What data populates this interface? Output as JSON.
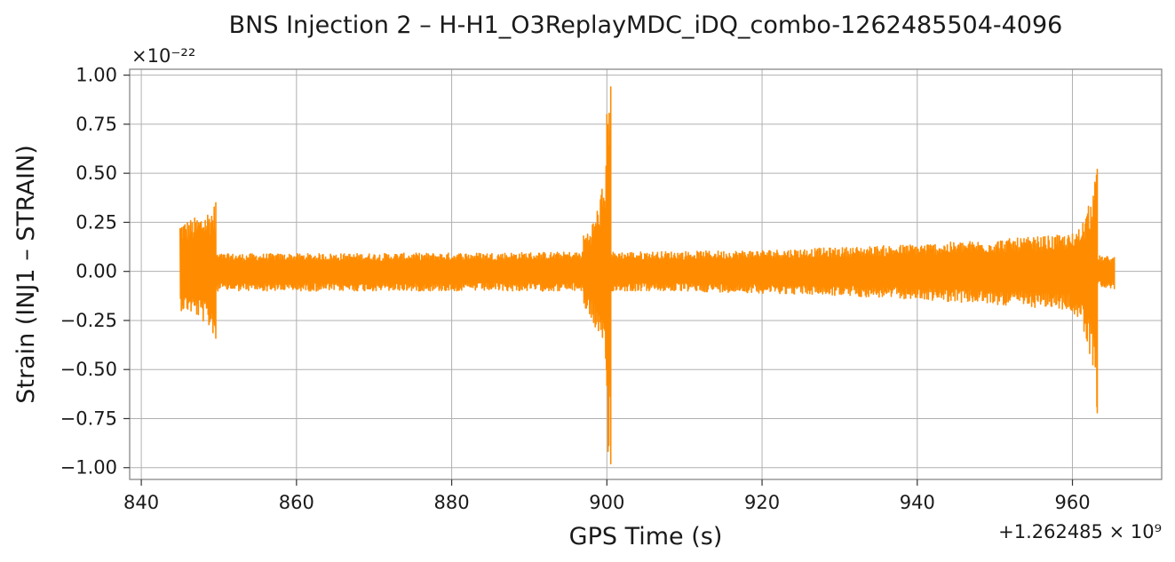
{
  "chart_data": {
    "type": "line",
    "title": "BNS Injection 2 – H-H1_O3ReplayMDC_iDQ_combo-1262485504-4096",
    "xlabel": "GPS Time (s)",
    "ylabel": "Strain (INJ1 – STRAIN)",
    "y_scale_label": "×10⁻²²",
    "x_offset_label": "+1.262485 × 10⁹",
    "xlim": [
      838.5,
      971.5
    ],
    "ylim": [
      -1.06,
      1.03
    ],
    "x_ticks": [
      840,
      860,
      880,
      900,
      920,
      940,
      960
    ],
    "y_ticks": [
      1.0,
      0.75,
      0.5,
      0.25,
      0.0,
      -0.25,
      -0.5,
      -0.75,
      -1.0
    ],
    "x_tick_labels": [
      "840",
      "860",
      "880",
      "900",
      "920",
      "940",
      "960"
    ],
    "y_tick_labels": [
      "1.00",
      "0.75",
      "0.50",
      "0.25",
      "0.00",
      "−0.25",
      "−0.50",
      "−0.75",
      "−1.00"
    ],
    "grid": true,
    "series": [
      {
        "color": "#ff8c00",
        "segments": [
          {
            "x": [
              845.0,
              849.6
            ],
            "ymax": [
              0.26,
              0.35
            ],
            "ymin": [
              -0.2,
              -0.34
            ]
          },
          {
            "x": [
              849.6,
              897.0
            ],
            "ymax": [
              0.09,
              0.1
            ],
            "ymin": [
              -0.1,
              -0.1
            ]
          },
          {
            "x": [
              897.0,
              900.0
            ],
            "ymax": [
              0.2,
              0.57
            ],
            "ymin": [
              -0.2,
              -0.58
            ]
          },
          {
            "x": [
              900.0,
              900.5
            ],
            "ymax": [
              0.94,
              0.94
            ],
            "ymin": [
              -0.98,
              -0.98
            ]
          },
          {
            "x": [
              900.5,
              960.0
            ],
            "ymax": [
              0.1,
              0.19
            ],
            "ymin": [
              -0.1,
              -0.2
            ]
          },
          {
            "x": [
              960.0,
              963.2
            ],
            "ymax": [
              0.2,
              0.52
            ],
            "ymin": [
              -0.22,
              -0.72
            ]
          },
          {
            "x": [
              963.2,
              965.4
            ],
            "ymax": [
              0.08,
              0.07
            ],
            "ymin": [
              -0.08,
              -0.09
            ]
          }
        ]
      }
    ]
  }
}
